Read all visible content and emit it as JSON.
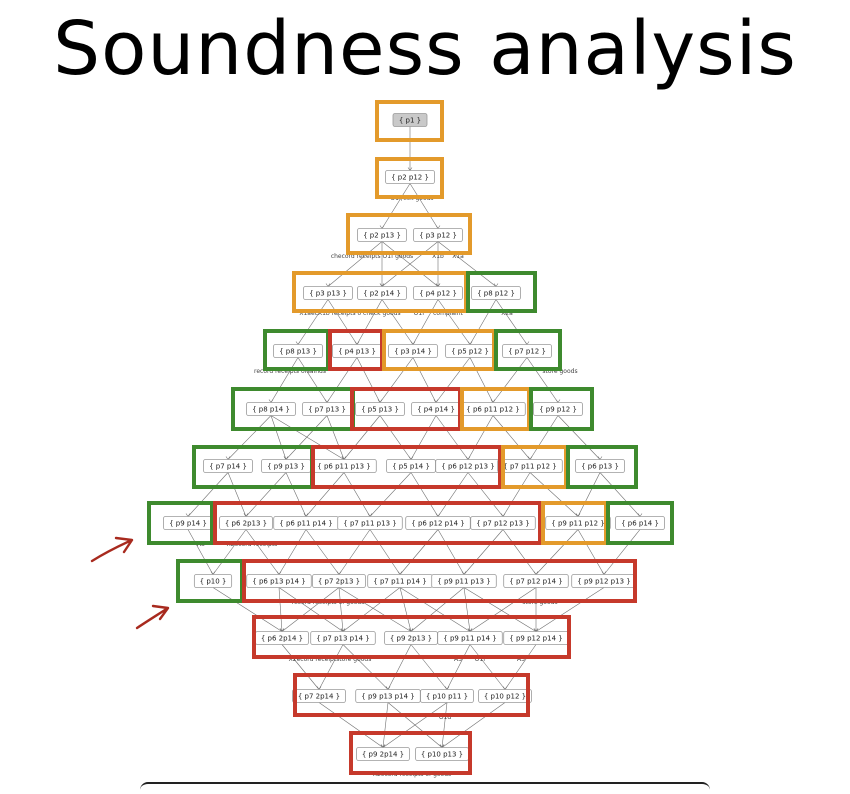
{
  "title": "Soundness analysis",
  "colors": {
    "orange": "#e39a2b",
    "green": "#3e8a2e",
    "red": "#c6392b",
    "annotation": "#a82a1e"
  },
  "levels": [
    {
      "nodes": [
        "{ p1 }"
      ]
    },
    {
      "nodes": [
        "{ p2 p12 }"
      ]
    },
    {
      "nodes": [
        "{ p2 p13 }",
        "{ p3 p12 }"
      ]
    },
    {
      "nodes": [
        "{ p3 p13 }",
        "{ p2 p14 }",
        "{ p4 p12 }",
        "{ p8 p12 }"
      ]
    },
    {
      "nodes": [
        "{ p8 p13 }",
        "{ p4 p13 }",
        "{ p3 p14 }",
        "{ p5 p12 }",
        "{ p7 p12 }"
      ]
    },
    {
      "nodes": [
        "{ p8 p14 }",
        "{ p7 p13 }",
        "{ p5 p13 }",
        "{ p4 p14 }",
        "{ p6 p11 p12 }",
        "{ p9 p12 }"
      ]
    },
    {
      "nodes": [
        "{ p7 p14 }",
        "{ p9 p13 }",
        "{ p6 p11 p13 }",
        "{ p5 p14 }",
        "{ p6 p12 p13 }",
        "{ p7 p11 p12 }",
        "{ p6 p13 }"
      ]
    },
    {
      "nodes": [
        "{ p9 p14 }",
        "{ p6 2p13 }",
        "{ p6 p11 p14 }",
        "{ p7 p11 p13 }",
        "{ p6 p12 p14 }",
        "{ p7 p12 p13 }",
        "{ p9 p11 p12 }",
        "{ p6 p14 }"
      ]
    },
    {
      "nodes": [
        "{ p10 }",
        "{ p6 p13 p14 }",
        "{ p7 2p13 }",
        "{ p7 p11 p14 }",
        "{ p9 p11 p13 }",
        "{ p7 p12 p14 }",
        "{ p9 p12 p13 }"
      ]
    },
    {
      "nodes": [
        "{ p6 2p14 }",
        "{ p7 p13 p14 }",
        "{ p9 2p13 }",
        "{ p9 p11 p14 }",
        "{ p9 p12 p14 }"
      ]
    },
    {
      "nodes": [
        "{ p7 2p14 }",
        "{ p9 p13 p14 }",
        "{ p10 p11 }",
        "{ p10 p12 }"
      ]
    },
    {
      "nodes": [
        "{ p9 2p14 }",
        "{ p10 p13 }"
      ]
    }
  ],
  "edge_labels": [
    "O1f/eck goods",
    "checord receipts O1f goods",
    "X1b",
    "X1a",
    "X1aecX1b receipts o check goods",
    "O1f",
    "complaint",
    "X2a",
    "record receipts ofsalnds",
    "store goods",
    "A3",
    "X2ecord receipts",
    "record receipts of goods",
    "store goods",
    "A3",
    "O1f",
    "A3",
    "X2ecord receiptstore goods",
    "O1d",
    "X2ecord receipts of goods"
  ]
}
